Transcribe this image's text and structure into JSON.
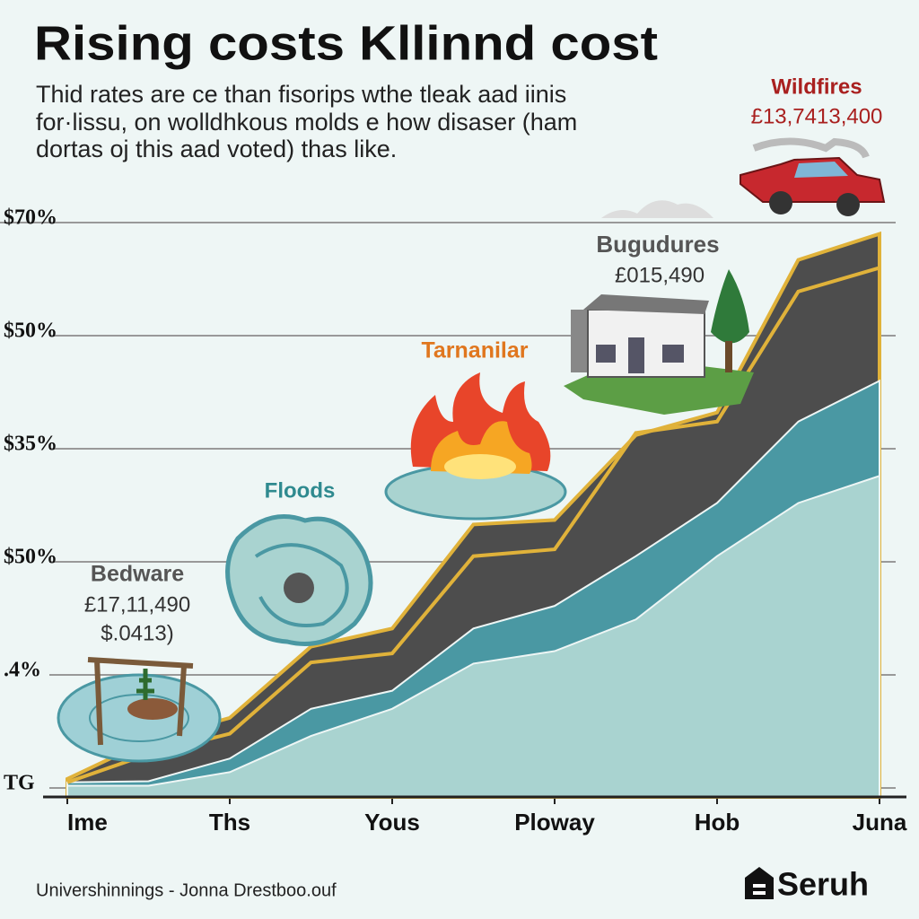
{
  "chart_data": {
    "type": "area",
    "stacked": true,
    "title": "Rising costs Kllinnd cost",
    "subtitle": [
      "Thid rates are ce than fisorips wthe tleak aad iinis",
      "for·lissu, on wolldhkous molds e how disaser (ham",
      "dortas oj this aad voted) thas like."
    ],
    "x": [
      0,
      0.5,
      1,
      1.5,
      2,
      2.5,
      3,
      3.5,
      4,
      4.5,
      5
    ],
    "xlim": [
      0,
      5
    ],
    "xticks": [
      {
        "value": 0,
        "label": "Ime"
      },
      {
        "value": 1,
        "label": "Ths"
      },
      {
        "value": 2,
        "label": "Yous"
      },
      {
        "value": 3,
        "label": "Ploway"
      },
      {
        "value": 4,
        "label": "Hob"
      },
      {
        "value": 5,
        "label": "Juna"
      }
    ],
    "ylim": [
      0,
      5
    ],
    "yticks": [
      {
        "value": 0,
        "label": "TG"
      },
      {
        "value": 1,
        "label": ".4%"
      },
      {
        "value": 2,
        "label": "$50%"
      },
      {
        "value": 3,
        "label": "$35%"
      },
      {
        "value": 4,
        "label": "$50%"
      },
      {
        "value": 5,
        "label": "$70%"
      }
    ],
    "grid": true,
    "series": [
      {
        "color": "#a9d3d0",
        "values": [
          0.02,
          0.02,
          0.14,
          0.46,
          0.7,
          1.1,
          1.21,
          1.49,
          2.05,
          2.52,
          2.76
        ]
      },
      {
        "color": "#4a98a3",
        "values": [
          0.03,
          0.04,
          0.12,
          0.24,
          0.16,
          0.31,
          0.4,
          0.56,
          0.47,
          0.72,
          0.84
        ]
      },
      {
        "color": "#4d4d4d",
        "values": [
          0.03,
          0.36,
          0.36,
          0.55,
          0.55,
          0.92,
          0.76,
          1.07,
          0.8,
          1.43,
          1.3
        ]
      },
      {
        "type": "line",
        "color": "#e0b23a",
        "values": [
          0.05,
          0.3,
          0.48,
          1.11,
          1.19,
          2.05,
          2.11,
          3.14,
          3.24,
          4.39,
          4.6
        ]
      }
    ],
    "annotations": [
      {
        "label": "Wildfires",
        "amount": "£13,7413,400"
      },
      {
        "label": "Bugudures",
        "amount": "£015,490"
      },
      {
        "label": "Tarnanilar"
      },
      {
        "label": "Floods"
      },
      {
        "label": "Bedware",
        "amount": "£17,11,490",
        "note": "$.0413)"
      }
    ],
    "source": "Univershinnings - Jonna Drestboo.ouf",
    "brand": "Seruh"
  }
}
